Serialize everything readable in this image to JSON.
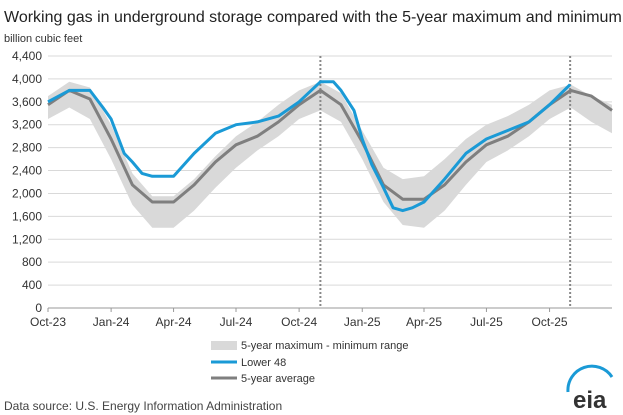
{
  "chart_data": {
    "type": "line",
    "title": "Working gas in underground storage compared with the 5-year maximum and minimum",
    "ylabel": "billion cubic feet",
    "xlabel": "",
    "ylim": [
      0,
      4400
    ],
    "yticks": [
      0,
      400,
      800,
      1200,
      1600,
      2000,
      2400,
      2800,
      3200,
      3600,
      4000,
      4400
    ],
    "xlim": [
      "2023-10-01",
      "2025-12-31"
    ],
    "xticks": [
      {
        "date": "2023-10-01",
        "label": "Oct-23"
      },
      {
        "date": "2024-01-01",
        "label": "Jan-24"
      },
      {
        "date": "2024-04-01",
        "label": "Apr-24"
      },
      {
        "date": "2024-07-01",
        "label": "Jul-24"
      },
      {
        "date": "2024-10-01",
        "label": "Oct-24"
      },
      {
        "date": "2025-01-01",
        "label": "Jan-25"
      },
      {
        "date": "2025-04-01",
        "label": "Apr-25"
      },
      {
        "date": "2025-07-01",
        "label": "Jul-25"
      },
      {
        "date": "2025-10-01",
        "label": "Oct-25"
      }
    ],
    "vlines": [
      "2024-11-01",
      "2025-10-31"
    ],
    "grid": true,
    "legend_position": "bottom",
    "range_band": {
      "name": "5-year maximum - minimum range",
      "color": "#d9d9d9",
      "x": [
        "2023-10-01",
        "2023-11-01",
        "2023-12-01",
        "2024-01-01",
        "2024-02-01",
        "2024-03-01",
        "2024-04-01",
        "2024-05-01",
        "2024-06-01",
        "2024-07-01",
        "2024-08-01",
        "2024-09-01",
        "2024-10-01",
        "2024-11-01",
        "2024-12-01",
        "2025-01-01",
        "2025-02-01",
        "2025-03-01",
        "2025-04-01",
        "2025-05-01",
        "2025-06-01",
        "2025-07-01",
        "2025-08-01",
        "2025-09-01",
        "2025-10-01",
        "2025-11-01",
        "2025-12-01",
        "2025-12-31"
      ],
      "max": [
        3700,
        3950,
        3850,
        3200,
        2350,
        1950,
        1950,
        2250,
        2650,
        3000,
        3250,
        3550,
        3800,
        3950,
        3750,
        3100,
        2450,
        2250,
        2300,
        2600,
        2950,
        3200,
        3350,
        3550,
        3800,
        3900,
        3700,
        3550
      ],
      "min": [
        3300,
        3500,
        3300,
        2600,
        1800,
        1400,
        1400,
        1700,
        2100,
        2450,
        2750,
        3000,
        3300,
        3450,
        3250,
        2600,
        1850,
        1450,
        1400,
        1700,
        2150,
        2550,
        2750,
        3000,
        3300,
        3500,
        3250,
        3050
      ]
    },
    "series": [
      {
        "name": "Lower 48",
        "color": "#1a9ad6",
        "x": [
          "2023-10-01",
          "2023-11-01",
          "2023-12-01",
          "2023-12-20",
          "2024-01-01",
          "2024-01-20",
          "2024-02-01",
          "2024-02-15",
          "2024-03-01",
          "2024-03-15",
          "2024-04-01",
          "2024-05-01",
          "2024-06-01",
          "2024-07-01",
          "2024-08-01",
          "2024-09-01",
          "2024-10-01",
          "2024-11-01",
          "2024-11-20",
          "2024-12-01",
          "2024-12-20",
          "2025-01-01",
          "2025-01-15",
          "2025-02-01",
          "2025-02-15",
          "2025-03-01",
          "2025-03-15",
          "2025-04-01",
          "2025-05-01",
          "2025-06-01",
          "2025-07-01",
          "2025-08-01",
          "2025-09-01",
          "2025-10-01",
          "2025-10-31"
        ],
        "y": [
          3600,
          3800,
          3800,
          3500,
          3300,
          2700,
          2550,
          2350,
          2300,
          2300,
          2300,
          2700,
          3050,
          3200,
          3250,
          3350,
          3600,
          3950,
          3950,
          3800,
          3450,
          2950,
          2500,
          2100,
          1750,
          1700,
          1750,
          1850,
          2250,
          2700,
          2950,
          3100,
          3250,
          3550,
          3900
        ]
      },
      {
        "name": "5-year average",
        "color": "#7f7f7f",
        "x": [
          "2023-10-01",
          "2023-11-01",
          "2023-12-01",
          "2024-01-01",
          "2024-02-01",
          "2024-03-01",
          "2024-04-01",
          "2024-05-01",
          "2024-06-01",
          "2024-07-01",
          "2024-08-01",
          "2024-09-01",
          "2024-10-01",
          "2024-11-01",
          "2024-12-01",
          "2025-01-01",
          "2025-02-01",
          "2025-03-01",
          "2025-04-01",
          "2025-05-01",
          "2025-06-01",
          "2025-07-01",
          "2025-08-01",
          "2025-09-01",
          "2025-10-01",
          "2025-11-01",
          "2025-12-01",
          "2025-12-31"
        ],
        "y": [
          3550,
          3800,
          3650,
          2950,
          2150,
          1850,
          1850,
          2150,
          2550,
          2850,
          3000,
          3250,
          3550,
          3800,
          3550,
          2900,
          2150,
          1900,
          1900,
          2150,
          2550,
          2850,
          3000,
          3250,
          3550,
          3800,
          3700,
          3450
        ]
      }
    ]
  },
  "legend": {
    "range_label": "5-year maximum - minimum range",
    "lower48_label": "Lower 48",
    "avg_label": "5-year average"
  },
  "source": "Data source:  U.S. Energy Information Administration",
  "logo_text": "eia"
}
